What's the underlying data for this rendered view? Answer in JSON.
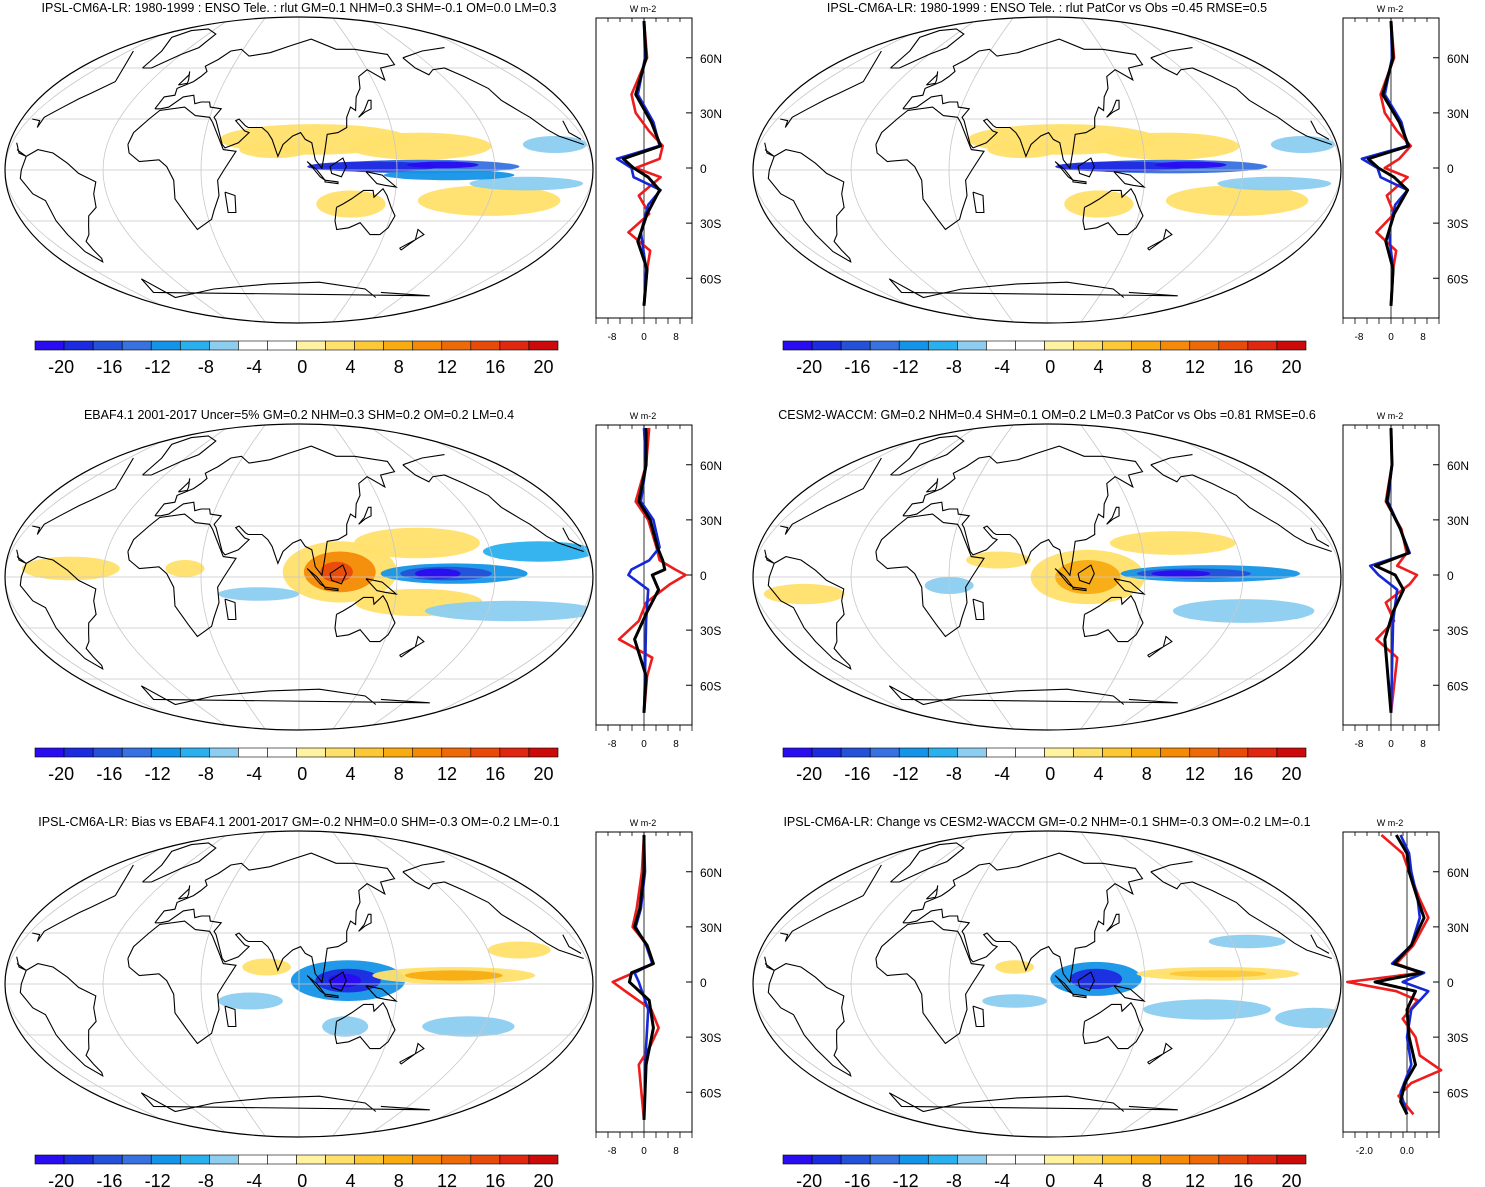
{
  "colors": {
    "levels": [
      "#2a0cf0",
      "#1d2be0",
      "#2550d8",
      "#3772e0",
      "#1494e8",
      "#2ab0ee",
      "#8ccdf0",
      "#ffffff",
      "#ffffff",
      "#fff2a0",
      "#ffe06a",
      "#fcc838",
      "#f8ac12",
      "#f48a08",
      "#ee6a08",
      "#e84a0a",
      "#e02810",
      "#cc0a0a"
    ],
    "coast": "#000000",
    "grid": "#c8c8c8",
    "line_red": "#ee1c1c",
    "line_blue": "#1428d8",
    "line_black": "#000000"
  },
  "colorbar": {
    "labels": [
      "-20",
      "-16",
      "-12",
      "-8",
      "-4",
      "0",
      "4",
      "8",
      "12",
      "16",
      "20"
    ]
  },
  "lat_labels": [
    "60N",
    "30N",
    "0",
    "30S",
    "60S"
  ],
  "panels": [
    {
      "title": "IPSL-CM6A-LR: 1980-1999 : ENSO Tele. : rlut GM=0.1 NHM=0.3 SHM=-0.1 OM=0.0 LM=0.3",
      "unit": "W m-2",
      "xticks": [
        "-8",
        "0",
        "8"
      ]
    },
    {
      "title": "IPSL-CM6A-LR: 1980-1999 : ENSO Tele. : rlut PatCor vs Obs =0.45 RMSE=0.5",
      "unit": "W m-2",
      "xticks": [
        "-8",
        "0",
        "8"
      ]
    },
    {
      "title": "EBAF4.1 2001-2017 Uncer=5% GM=0.2 NHM=0.3 SHM=0.2 OM=0.2 LM=0.4",
      "unit": "W m-2",
      "xticks": [
        "-8",
        "0",
        "8"
      ]
    },
    {
      "title": "CESM2-WACCM: GM=0.2 NHM=0.4 SHM=0.1 OM=0.2 LM=0.3 PatCor vs Obs =0.81 RMSE=0.6",
      "unit": "W m-2",
      "xticks": [
        "-8",
        "0",
        "8"
      ]
    },
    {
      "title": "IPSL-CM6A-LR: Bias vs EBAF4.1 2001-2017 GM=-0.2 NHM=0.0 SHM=-0.3 OM=-0.2 LM=-0.1",
      "unit": "W m-2",
      "xticks": [
        "-8",
        "0",
        "8"
      ]
    },
    {
      "title": "IPSL-CM6A-LR: Change vs CESM2-WACCM GM=-0.2 NHM=-0.1 SHM=-0.3 OM=-0.2 LM=-0.1",
      "unit": "W m-2",
      "xticks": [
        "-2.0",
        "0.0"
      ]
    }
  ]
}
